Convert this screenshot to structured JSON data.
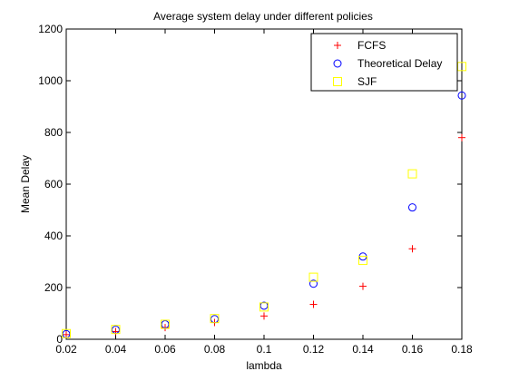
{
  "chart_data": {
    "type": "scatter",
    "title": "Average system delay under different policies",
    "xlabel": "lambda",
    "ylabel": "Mean Delay",
    "xlim": [
      0.02,
      0.18
    ],
    "ylim": [
      0,
      1200
    ],
    "x_ticks": [
      "0.02",
      "0.04",
      "0.06",
      "0.08",
      "0.1",
      "0.12",
      "0.14",
      "0.16",
      "0.18"
    ],
    "y_ticks": [
      "0",
      "200",
      "400",
      "600",
      "800",
      "1000",
      "1200"
    ],
    "grid": false,
    "legend_position": "top-right",
    "series": [
      {
        "name": "FCFS",
        "marker": "plus",
        "color": "#ff0000",
        "x": [
          0.02,
          0.04,
          0.06,
          0.08,
          0.1,
          0.12,
          0.14,
          0.16,
          0.18
        ],
        "y": [
          18,
          30,
          45,
          65,
          90,
          135,
          205,
          350,
          780
        ]
      },
      {
        "name": "Theoretical Delay",
        "marker": "circle",
        "color": "#0000ff",
        "x": [
          0.02,
          0.04,
          0.06,
          0.08,
          0.1,
          0.12,
          0.14,
          0.16,
          0.18
        ],
        "y": [
          20,
          37,
          58,
          78,
          130,
          215,
          320,
          510,
          943
        ]
      },
      {
        "name": "SJF",
        "marker": "square",
        "color": "#ffff00",
        "x": [
          0.02,
          0.04,
          0.06,
          0.08,
          0.1,
          0.12,
          0.14,
          0.16,
          0.18
        ],
        "y": [
          22,
          38,
          58,
          80,
          125,
          240,
          305,
          640,
          1055
        ]
      }
    ]
  }
}
